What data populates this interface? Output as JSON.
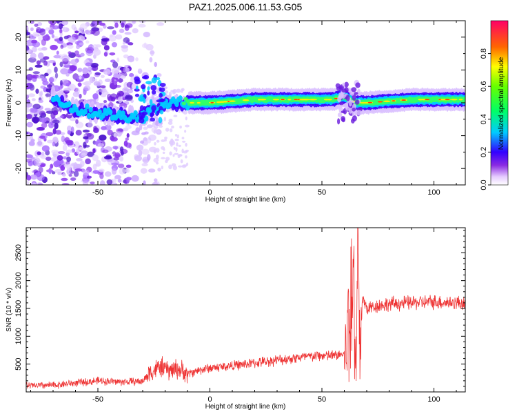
{
  "title": "PAZ1.2025.006.11.53.G05",
  "chart_data": [
    {
      "type": "heatmap",
      "xlabel": "Height of straight line (km)",
      "ylabel": "Frequency (Hz)",
      "xlim": [
        -82,
        114
      ],
      "ylim": [
        -25,
        25
      ],
      "xticks": [
        -50,
        0,
        50,
        100
      ],
      "yticks": [
        -20,
        -10,
        0,
        10,
        20
      ],
      "colorbar": {
        "label": "Normalized spectral amplitude",
        "range": [
          0,
          1
        ],
        "ticks": [
          0.0,
          0.2,
          0.4,
          0.6,
          0.8
        ],
        "tick_labels": [
          "0.0",
          "0.2",
          "0.4",
          "0.6",
          "0.8"
        ]
      },
      "ridge": {
        "description_points_x": [
          -82,
          -70,
          -60,
          -50,
          -40,
          -30,
          -20,
          -10,
          0,
          20,
          40,
          55,
          60,
          65,
          70,
          90,
          114
        ],
        "frequency_hz": [
          -2,
          2,
          -2,
          -3,
          -4,
          -4,
          0,
          0,
          0,
          1,
          1,
          1,
          2,
          0,
          0,
          1,
          1
        ]
      }
    },
    {
      "type": "line",
      "xlabel": "Height of straight line (km)",
      "ylabel": "SNR (10 * v/v)",
      "xlim": [
        -82,
        114
      ],
      "ylim": [
        0,
        2950
      ],
      "xticks": [
        -50,
        0,
        50,
        100
      ],
      "yticks": [
        500,
        1000,
        1500,
        2000,
        2500
      ],
      "color": "#ee3333",
      "series": [
        {
          "x": [
            -82,
            -70,
            -60,
            -50,
            -40,
            -30,
            -27,
            -22,
            -18,
            -15,
            -12,
            -10,
            -5,
            0,
            10,
            20,
            30,
            40,
            50,
            55,
            60,
            61,
            62,
            63,
            64,
            65,
            66,
            67,
            68,
            70,
            75,
            80,
            90,
            100,
            110,
            114
          ],
          "y": [
            110,
            120,
            160,
            200,
            180,
            190,
            350,
            450,
            380,
            420,
            370,
            320,
            390,
            430,
            470,
            520,
            570,
            620,
            650,
            650,
            680,
            900,
            1900,
            600,
            2400,
            150,
            2900,
            700,
            1700,
            1500,
            1550,
            1580,
            1600,
            1620,
            1600,
            1600
          ]
        }
      ]
    }
  ]
}
